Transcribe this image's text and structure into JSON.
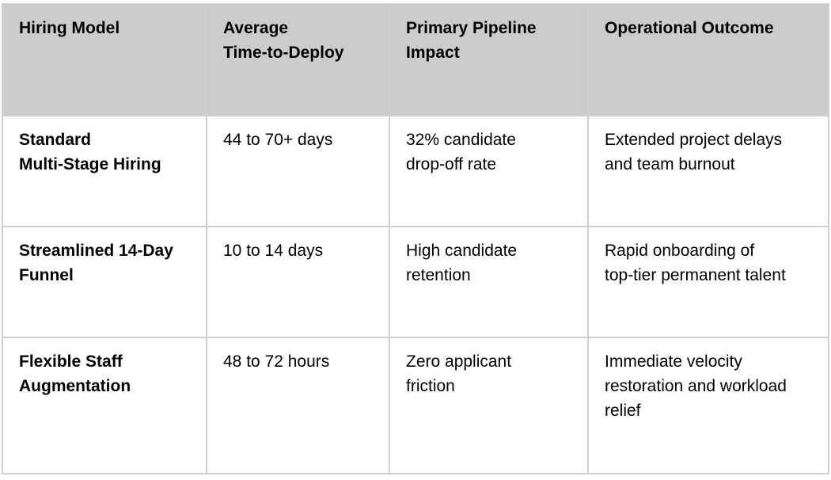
{
  "table": {
    "headers": [
      "Hiring Model",
      "Average\nTime-to-Deploy",
      "Primary Pipeline\nImpact",
      "Operational Outcome"
    ],
    "rows": [
      {
        "model": "Standard\nMulti-Stage Hiring",
        "time": "44 to 70+ days",
        "impact": "32% candidate\ndrop-off rate",
        "outcome": "Extended project delays\nand team burnout"
      },
      {
        "model": "Streamlined 14-Day\nFunnel",
        "time": "10 to 14 days",
        "impact": "High candidate\nretention",
        "outcome": "Rapid onboarding of\ntop-tier permanent talent"
      },
      {
        "model": "Flexible Staff\nAugmentation",
        "time": "48 to 72 hours",
        "impact": "Zero applicant\nfriction",
        "outcome": "Immediate velocity\nrestoration and workload\nrelief"
      }
    ]
  }
}
